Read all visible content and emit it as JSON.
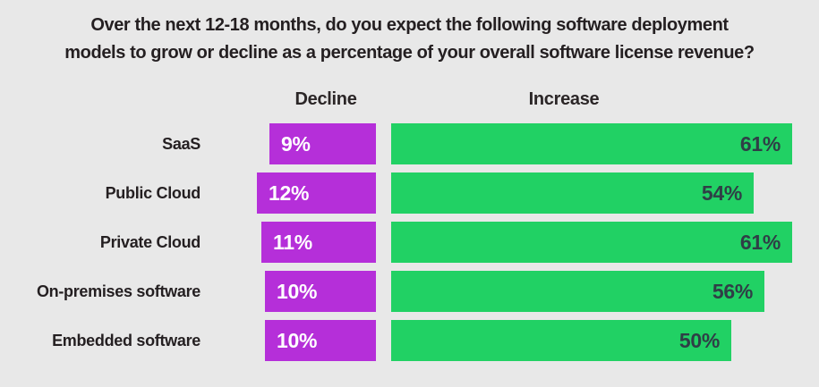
{
  "title": "Over the next 12-18 months, do you expect the following software deployment models to grow or decline as a percentage of your overall software license revenue?",
  "title_lines": [
    "Over the next 12-18 months, do you expect the following software deployment",
    "models to grow or decline as a percentage of your overall software license revenue?"
  ],
  "columns": {
    "decline": "Decline",
    "increase": "Increase"
  },
  "chart_data": {
    "type": "bar",
    "orientation": "horizontal",
    "title": "Over the next 12-18 months, do you expect the following software deployment models to grow or decline as a percentage of your overall software license revenue?",
    "categories": [
      "SaaS",
      "Public Cloud",
      "Private Cloud",
      "On-premises software",
      "Embedded software"
    ],
    "series": [
      {
        "name": "Decline",
        "unit": "%",
        "values": [
          9,
          12,
          11,
          10,
          10
        ],
        "color": "#b52fd9",
        "value_text_color": "#ffffff"
      },
      {
        "name": "Increase",
        "unit": "%",
        "values": [
          61,
          54,
          61,
          56,
          50
        ],
        "color": "#21d164",
        "value_text_color": "#2f3e46"
      }
    ],
    "value_labels": "inside",
    "legend_position": "column-headers-above-bars",
    "grid": false,
    "xlim": [
      0,
      100
    ]
  },
  "colors": {
    "background": "#e8e8e8",
    "title_text": "#241f21",
    "category_text": "#241f21",
    "decline_bar": "#b52fd9",
    "increase_bar": "#21d164",
    "decline_value_text": "#ffffff",
    "increase_value_text": "#2f3e46"
  }
}
